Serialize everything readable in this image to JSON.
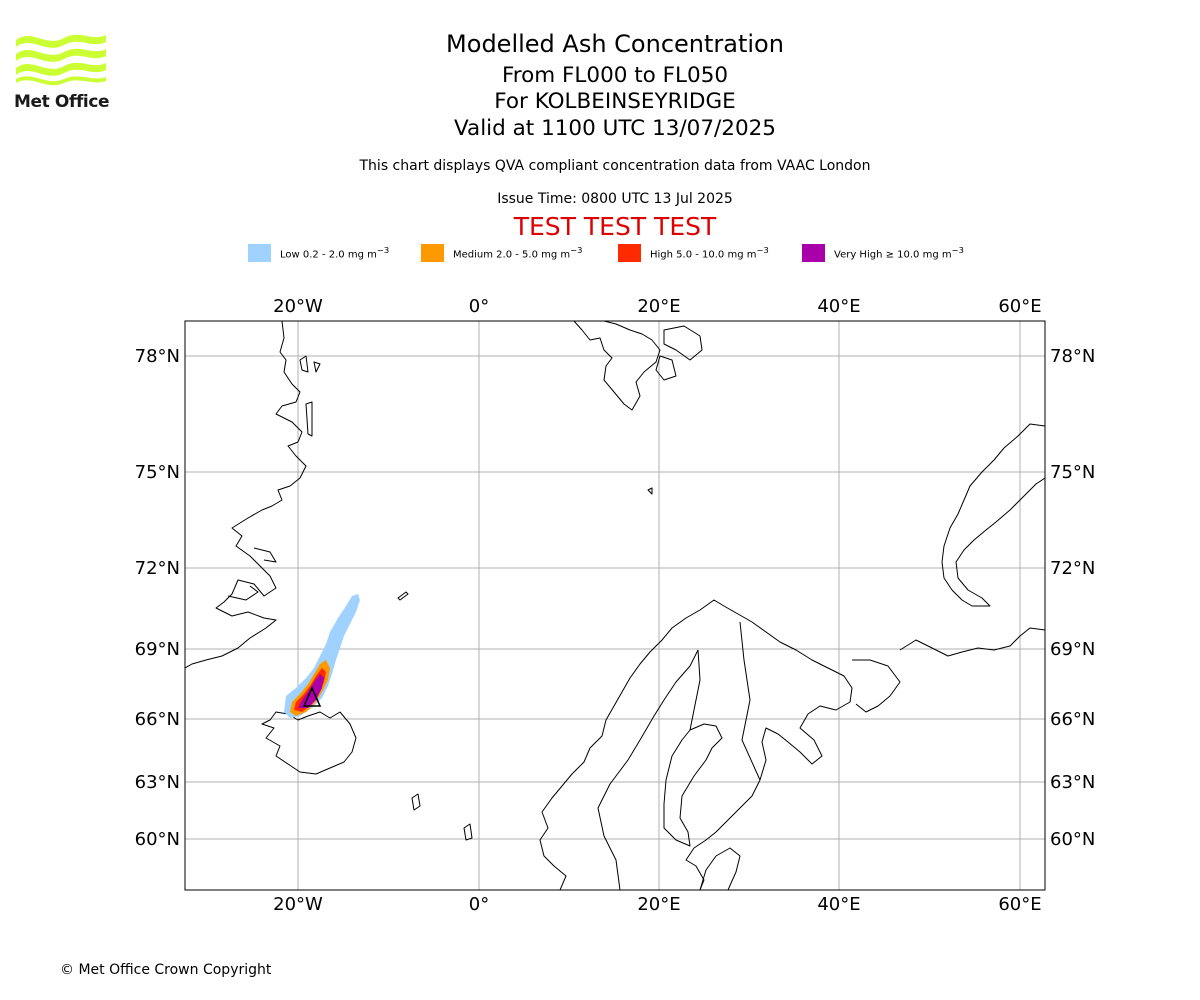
{
  "header": {
    "title": "Modelled Ash Concentration",
    "subtitle_levels": "From FL000 to FL050",
    "subtitle_volcano": "For KOLBEINSEYRIDGE",
    "subtitle_valid": "Valid at 1100 UTC 13/07/2025",
    "description": "This chart displays QVA compliant concentration data from VAAC London",
    "issue_time": "Issue Time: 0800 UTC 13 Jul 2025",
    "test_banner": "TEST TEST TEST",
    "test_banner_color": "#dd0000"
  },
  "logo": {
    "text": "Met Office",
    "icon": "met-office-waves-logo",
    "color": "#ccff33"
  },
  "legend": [
    {
      "label": "Low 0.2 - 2.0 mg m",
      "unit_exp": "−3",
      "color": "#a0d2ff"
    },
    {
      "label": "Medium 2.0 - 5.0 mg m",
      "unit_exp": "−3",
      "color": "#ff9900"
    },
    {
      "label": "High 5.0 - 10.0 mg m",
      "unit_exp": "−3",
      "color": "#ff2a00"
    },
    {
      "label": "Very High  ≥  10.0 mg m",
      "unit_exp": "−3",
      "color": "#aa00aa"
    }
  ],
  "map": {
    "longitude_labels": [
      "20°W",
      "0°",
      "20°E",
      "40°E",
      "60°E"
    ],
    "latitude_labels_left": [
      "78°N",
      "75°N",
      "72°N",
      "69°N",
      "66°N",
      "63°N",
      "60°N"
    ],
    "latitude_labels_right": [
      "78°N",
      "75°N",
      "72°N",
      "69°N",
      "66°N",
      "63°N",
      "60°N"
    ],
    "grid": true,
    "gridline_color": "#b0b0b0",
    "coastline_color": "#000000",
    "volcano_marker_icon": "volcano-triangle-icon"
  },
  "footer": {
    "copyright": "© Met Office Crown Copyright"
  }
}
